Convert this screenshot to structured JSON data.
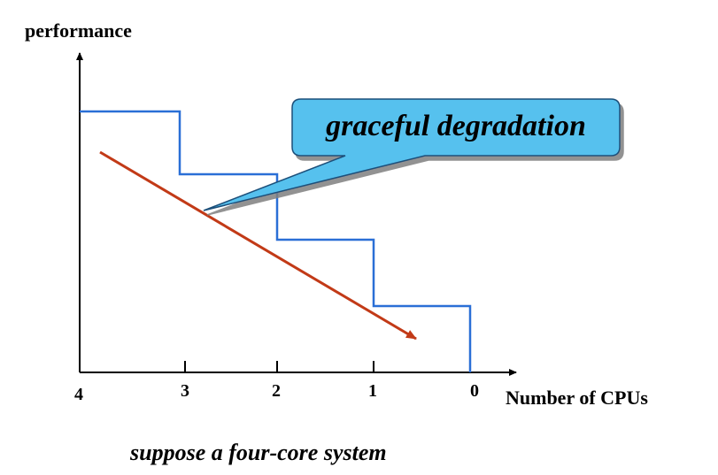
{
  "diagram": {
    "y_axis_label": "performance",
    "x_axis_label": "Number of CPUs",
    "x_ticks": [
      "4",
      "3",
      "2",
      "1",
      "0"
    ],
    "callout_label": "graceful degradation",
    "caption": "suppose a four-core system",
    "colors": {
      "axes": "#000000",
      "step_line": "#2a6fd6",
      "linear_line": "#c23a17",
      "callout_fill": "#57c1ee",
      "callout_stroke": "#1b4f7a"
    }
  }
}
